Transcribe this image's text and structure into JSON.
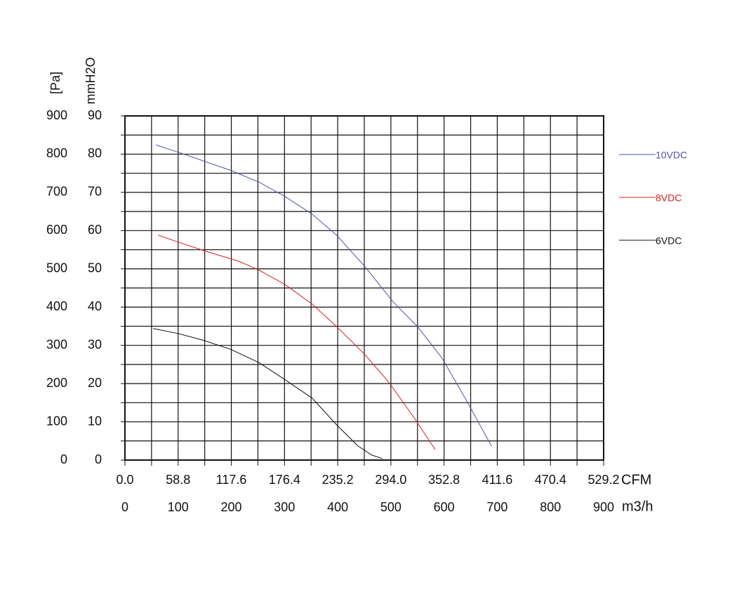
{
  "chart_data": {
    "type": "line",
    "ylabel": "mmH2O",
    "y2label": "[Pa]",
    "xlabel": "m3/h",
    "x2label": "CFM",
    "xlim": [
      0,
      900
    ],
    "xticks": [
      0,
      100,
      200,
      300,
      400,
      500,
      600,
      700,
      800,
      900
    ],
    "x2lim": [
      0,
      529.2
    ],
    "x2ticks": [
      {
        "value": 0,
        "label": "0.0"
      },
      58.8,
      117.6,
      176.4,
      235.2,
      {
        "value": 294,
        "label": "294.0"
      },
      352.8,
      411.6,
      470.4,
      529.2
    ],
    "ylim": [
      0,
      90
    ],
    "yticks": [
      0,
      10,
      20,
      30,
      40,
      50,
      60,
      70,
      80,
      90
    ],
    "y2lim": [
      0,
      900
    ],
    "y2ticks": [
      0,
      100,
      200,
      300,
      400,
      500,
      600,
      700,
      800,
      900
    ],
    "grid": true,
    "legend": "right",
    "series": [
      {
        "name": "10VDC",
        "color": "#4a55a8",
        "x": [
          58,
          100,
          200,
          253,
          300,
          352,
          398,
          451,
          504,
          550,
          596,
          642,
          689
        ],
        "values": [
          82.4,
          80.5,
          75.7,
          72.6,
          69,
          64.3,
          58.8,
          50.6,
          41.4,
          34.9,
          26.7,
          15.6,
          3.7
        ]
      },
      {
        "name": "8VDC",
        "color": "#d42020",
        "x": [
          63,
          100,
          161,
          214,
          253,
          300,
          352,
          398,
          451,
          497,
          544,
          583
        ],
        "values": [
          58.8,
          57,
          54.2,
          52,
          49.6,
          46,
          40.8,
          34.9,
          27.6,
          20.2,
          11,
          2.8
        ]
      },
      {
        "name": "6VDC",
        "color": "#111111",
        "x": [
          53,
          100,
          148,
          200,
          253,
          300,
          352,
          398,
          438,
          464,
          484
        ],
        "values": [
          34.4,
          33.1,
          31.3,
          28.9,
          25.4,
          21.1,
          16.2,
          9.2,
          3.7,
          1.3,
          0.4
        ]
      }
    ]
  }
}
